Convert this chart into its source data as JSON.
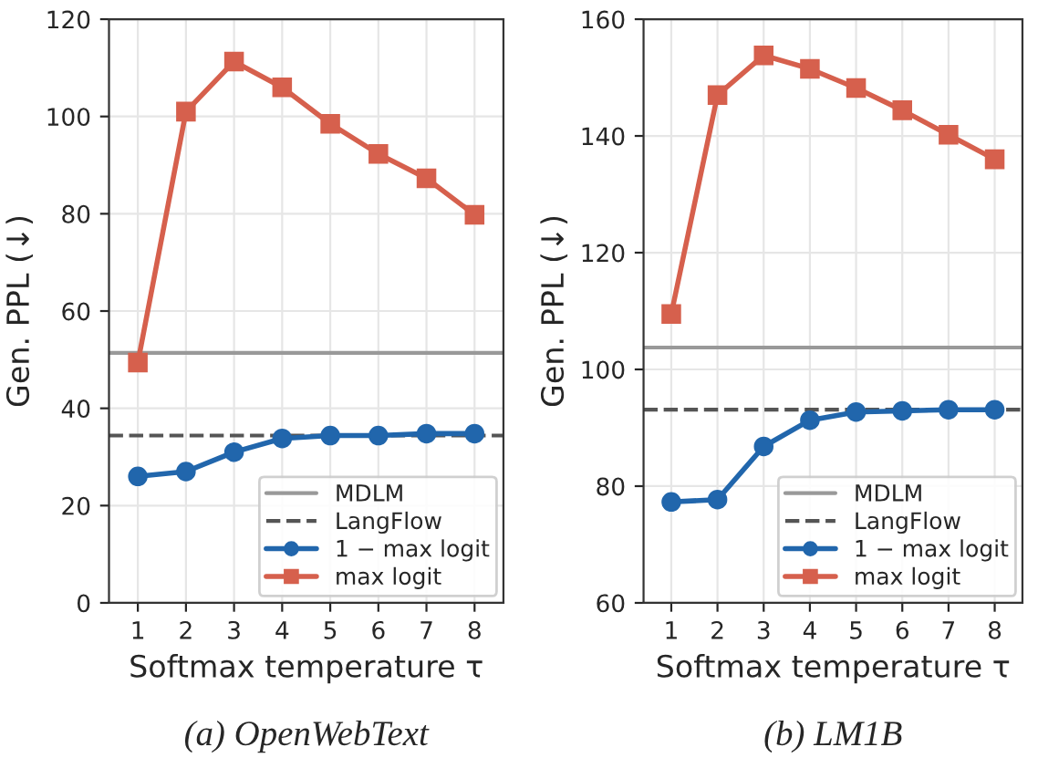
{
  "chart_data": [
    {
      "type": "line",
      "x": [
        1,
        2,
        3,
        4,
        5,
        6,
        7,
        8
      ],
      "xlabel": "Softmax temperature τ",
      "ylabel": "Gen. PPL (↓)",
      "xlim": [
        0.4,
        8.6
      ],
      "xticks": [
        1,
        2,
        3,
        4,
        5,
        6,
        7,
        8
      ],
      "ylim": [
        0,
        120
      ],
      "yticks": [
        0,
        20,
        40,
        60,
        80,
        100,
        120
      ],
      "grid": true,
      "legend": "bottom right",
      "series": [
        {
          "name": "1 − max logit",
          "color": "#2166ac",
          "marker": "circle",
          "values": [
            26,
            27,
            31,
            33.8,
            34.4,
            34.4,
            34.8,
            34.8
          ]
        },
        {
          "name": "max logit",
          "color": "#d6604d",
          "marker": "square",
          "values": [
            49.4,
            101,
            111.3,
            106,
            98.5,
            92.3,
            87.3,
            79.8
          ]
        }
      ],
      "ref_lines": [
        {
          "axis": "y",
          "value": 51.4,
          "label": "MDLM",
          "color": "#999999",
          "line_style": "solid"
        },
        {
          "axis": "y",
          "value": 34.4,
          "label": "LangFlow",
          "color": "#555555",
          "line_style": "dashed"
        }
      ],
      "annotations": [
        "(a) OpenWebText"
      ]
    },
    {
      "type": "line",
      "x": [
        1,
        2,
        3,
        4,
        5,
        6,
        7,
        8
      ],
      "xlabel": "Softmax temperature τ",
      "ylabel": "Gen. PPL (↓)",
      "xlim": [
        0.4,
        8.6
      ],
      "xticks": [
        1,
        2,
        3,
        4,
        5,
        6,
        7,
        8
      ],
      "ylim": [
        60,
        160
      ],
      "yticks": [
        60,
        80,
        100,
        120,
        140,
        160
      ],
      "grid": true,
      "legend": "bottom right",
      "series": [
        {
          "name": "1 − max logit",
          "color": "#2166ac",
          "marker": "circle",
          "values": [
            77.3,
            77.7,
            86.8,
            91.3,
            92.7,
            92.9,
            93.1,
            93.1
          ]
        },
        {
          "name": "max logit",
          "color": "#d6604d",
          "marker": "square",
          "values": [
            109.5,
            147,
            153.8,
            151.5,
            148.2,
            144.4,
            140.2,
            136.0
          ]
        }
      ],
      "ref_lines": [
        {
          "axis": "y",
          "value": 103.75,
          "label": "MDLM",
          "color": "#999999",
          "line_style": "solid"
        },
        {
          "axis": "y",
          "value": 93.1,
          "label": "LangFlow",
          "color": "#555555",
          "line_style": "dashed"
        }
      ],
      "annotations": [
        "(b) LM1B"
      ]
    }
  ]
}
